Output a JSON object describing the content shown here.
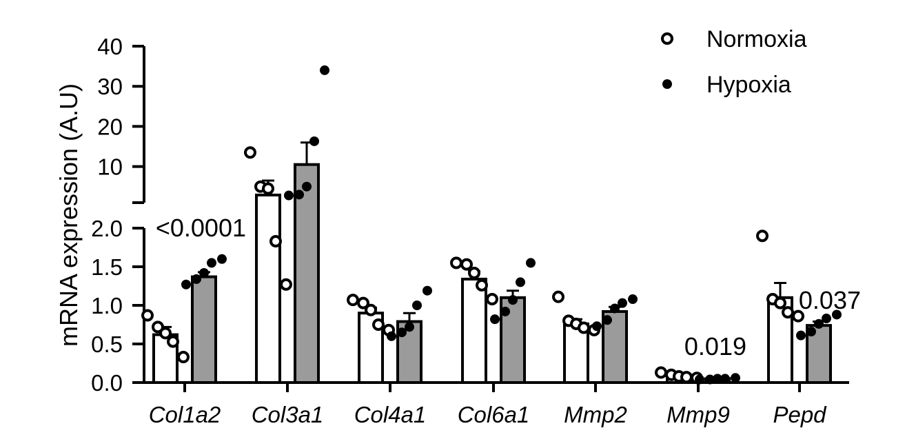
{
  "chart_data": {
    "type": "bar",
    "ylabel": "mRNA expression (A.U)",
    "legend": {
      "position": "top-right",
      "entries": [
        "Normoxia",
        "Hypoxia"
      ]
    },
    "y_axis_lower": {
      "range": [
        0,
        2.0
      ],
      "ticks": [
        "0.0",
        "0.5",
        "1.0",
        "1.5",
        "2.0"
      ]
    },
    "y_axis_upper": {
      "range": [
        1,
        40
      ],
      "ticks": [
        "10",
        "20",
        "30",
        "40"
      ]
    },
    "categories": [
      "Col1a2",
      "Col3a1",
      "Col4a1",
      "Col6a1",
      "Mmp2",
      "Mmp9",
      "Pepd"
    ],
    "series": [
      {
        "name": "Normoxia",
        "color": "#ffffff",
        "values": [
          0.62,
          2.9,
          0.9,
          1.34,
          0.76,
          0.09,
          1.1
        ],
        "errors": [
          0.1,
          3.6,
          0.07,
          0.1,
          0.06,
          0.02,
          0.19
        ],
        "points": [
          [
            0.87,
            0.72,
            0.64,
            0.53,
            0.33
          ],
          [
            13.5,
            5.0,
            4.5,
            1.83,
            1.27
          ],
          [
            1.07,
            1.03,
            0.94,
            0.75,
            0.68
          ],
          [
            1.55,
            1.53,
            1.42,
            1.26,
            1.08
          ],
          [
            1.11,
            0.8,
            0.76,
            0.71,
            0.68
          ],
          [
            0.13,
            0.1,
            0.08,
            0.07,
            0.06
          ],
          [
            1.9,
            1.08,
            1.03,
            0.91,
            0.86
          ]
        ]
      },
      {
        "name": "Hypoxia",
        "color": "#9b9b9b",
        "values": [
          1.37,
          10.5,
          0.79,
          1.1,
          0.92,
          0.05,
          0.74
        ],
        "errors": [
          0.06,
          5.5,
          0.11,
          0.09,
          0.06,
          0.01,
          0.05
        ],
        "points": [
          [
            1.6,
            1.55,
            1.42,
            1.34,
            1.27
          ],
          [
            34.0,
            16.3,
            5.0,
            3.0,
            2.8
          ],
          [
            1.19,
            1.0,
            0.72,
            0.65,
            0.6
          ],
          [
            1.55,
            1.3,
            1.07,
            0.92,
            0.82
          ],
          [
            1.08,
            1.03,
            0.96,
            0.81,
            0.73
          ],
          [
            0.06,
            0.05,
            0.05,
            0.04,
            0.04
          ],
          [
            0.88,
            0.83,
            0.76,
            0.66,
            0.61
          ]
        ]
      }
    ],
    "annotations": [
      {
        "category": "Col1a2",
        "text": "<0.0001"
      },
      {
        "category": "Mmp9",
        "text": "0.019"
      },
      {
        "category": "Pepd",
        "text": "0.037"
      }
    ]
  }
}
